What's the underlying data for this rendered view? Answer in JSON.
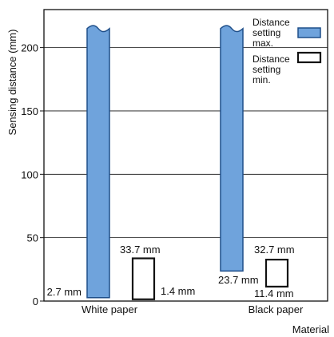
{
  "chart_data": {
    "type": "bar",
    "ylabel": "Sensing distance  (mm)",
    "xlabel": "Material",
    "ylim": [
      0,
      230
    ],
    "yticks": [
      0,
      50,
      100,
      150,
      200
    ],
    "grid": true,
    "legend_placement": "top-right",
    "categories": [
      "White paper",
      "Black  paper"
    ],
    "series": [
      {
        "name": "Distance setting max.",
        "color": "#6fa3dc",
        "ranges": [
          [
            2.7,
            215
          ],
          [
            23.7,
            215
          ]
        ],
        "labels": [
          "2.7 mm",
          "23.7 mm"
        ]
      },
      {
        "name": "Distance setting min.",
        "color": "#ffffff",
        "ranges": [
          [
            1.4,
            33.7
          ],
          [
            11.4,
            32.7
          ]
        ],
        "labels_top": [
          "33.7 mm",
          "32.7 mm"
        ],
        "labels_bottom": [
          "1.4 mm",
          "11.4 mm"
        ]
      }
    ],
    "legend": [
      {
        "lines": [
          "Distance",
          "setting",
          "max."
        ],
        "swatch": "filled"
      },
      {
        "lines": [
          "Distance",
          "setting",
          "min."
        ],
        "swatch": "outline"
      }
    ]
  }
}
